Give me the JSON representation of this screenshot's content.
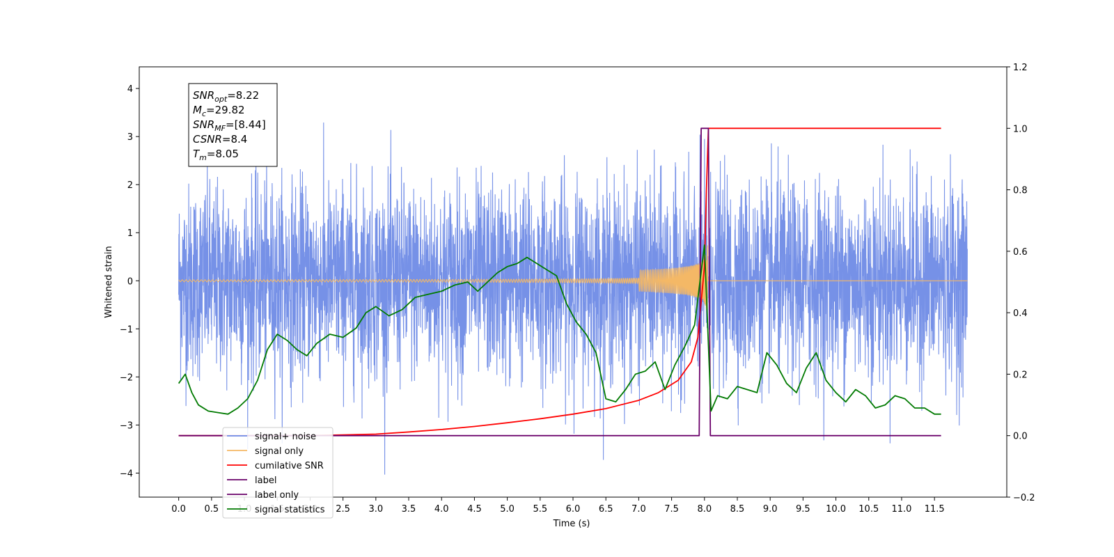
{
  "chart_data": {
    "type": "line",
    "xlabel": "Time (s)",
    "ylabel_left": "Whitened strain",
    "xlim": [
      -0.6,
      12.6
    ],
    "ylim_left": [
      -4.5,
      4.45
    ],
    "ylim_right": [
      -0.2,
      1.2
    ],
    "x_ticks": [
      "0.0",
      "0.5",
      "1.0",
      "1.5",
      "2.0",
      "2.5",
      "3.0",
      "3.5",
      "4.0",
      "4.5",
      "5.0",
      "5.5",
      "6.0",
      "6.5",
      "7.0",
      "7.5",
      "8.0",
      "8.5",
      "9.0",
      "9.5",
      "10.0",
      "10.5",
      "11.0",
      "11.5"
    ],
    "y_ticks_left": [
      "4",
      "3",
      "2",
      "1",
      "0",
      "−1",
      "−2",
      "−3",
      "−4"
    ],
    "y_ticks_right": [
      "1.2",
      "1.0",
      "0.8",
      "0.6",
      "0.4",
      "0.2",
      "0.0",
      "−0.2"
    ],
    "grid": false,
    "legend_position": "lower-left",
    "info_box": {
      "lines": [
        {
          "label": "SNR",
          "sub": "opt",
          "value": "=8.22"
        },
        {
          "label": "M",
          "sub": "c",
          "value": "=29.82"
        },
        {
          "label": "SNR",
          "sub": "MF",
          "value": "=[8.44]"
        },
        {
          "label": "CSNR",
          "sub": "",
          "value": "=8.4"
        },
        {
          "label": "T",
          "sub": "m",
          "value": "=8.05"
        }
      ]
    },
    "merger_time": 8.05,
    "series": [
      {
        "name": "signal+ noise",
        "color": "#6f8be6",
        "axis": "left",
        "x_range": [
          0.0,
          12.0
        ],
        "noise_sigma": 1.0
      },
      {
        "name": "signal only",
        "color": "#f4b866",
        "axis": "left",
        "x_range": [
          0.0,
          12.0
        ],
        "peak_amplitude": 0.9
      },
      {
        "name": "cumilative SNR",
        "color": "#ff0000",
        "axis": "right",
        "x": [
          0.0,
          1.0,
          2.0,
          3.0,
          3.5,
          4.0,
          4.5,
          5.0,
          5.5,
          6.0,
          6.5,
          7.0,
          7.3,
          7.6,
          7.8,
          7.9,
          8.0,
          8.03,
          8.06,
          8.1,
          9.0,
          10.0,
          11.0,
          11.6
        ],
        "values": [
          0.0,
          0.0,
          0.0,
          0.005,
          0.012,
          0.02,
          0.03,
          0.042,
          0.055,
          0.07,
          0.088,
          0.115,
          0.14,
          0.18,
          0.24,
          0.32,
          0.55,
          0.8,
          1.0,
          1.0,
          1.0,
          1.0,
          1.0,
          1.0
        ]
      },
      {
        "name": "label",
        "color": "#6a006a",
        "axis": "right",
        "x": [
          0.0,
          7.92,
          7.95,
          8.06,
          8.09,
          11.6
        ],
        "values": [
          0.0,
          0.0,
          1.0,
          1.0,
          0.0,
          0.0
        ]
      },
      {
        "name": "label only",
        "color": "#6a006a",
        "axis": "right",
        "hidden_under_legend": true,
        "x": [],
        "values": []
      },
      {
        "name": "signal statistics",
        "color": "#007a00",
        "axis": "right",
        "x": [
          0.0,
          0.1,
          0.2,
          0.3,
          0.45,
          0.6,
          0.75,
          0.9,
          1.05,
          1.2,
          1.35,
          1.5,
          1.65,
          1.8,
          1.95,
          2.1,
          2.3,
          2.5,
          2.7,
          2.85,
          3.0,
          3.2,
          3.4,
          3.6,
          3.8,
          4.0,
          4.2,
          4.4,
          4.55,
          4.7,
          4.85,
          5.0,
          5.15,
          5.3,
          5.45,
          5.6,
          5.75,
          5.9,
          6.05,
          6.2,
          6.35,
          6.5,
          6.65,
          6.8,
          6.95,
          7.1,
          7.25,
          7.4,
          7.55,
          7.7,
          7.85,
          8.0,
          8.1,
          8.2,
          8.35,
          8.5,
          8.65,
          8.8,
          8.95,
          9.1,
          9.25,
          9.4,
          9.55,
          9.7,
          9.85,
          10.0,
          10.15,
          10.3,
          10.45,
          10.6,
          10.75,
          10.9,
          11.05,
          11.2,
          11.35,
          11.5,
          11.6
        ],
        "values": [
          0.17,
          0.2,
          0.14,
          0.1,
          0.08,
          0.075,
          0.07,
          0.09,
          0.12,
          0.18,
          0.28,
          0.33,
          0.31,
          0.28,
          0.26,
          0.3,
          0.33,
          0.32,
          0.35,
          0.4,
          0.42,
          0.39,
          0.41,
          0.45,
          0.46,
          0.47,
          0.49,
          0.5,
          0.47,
          0.5,
          0.53,
          0.55,
          0.56,
          0.58,
          0.56,
          0.54,
          0.52,
          0.43,
          0.37,
          0.33,
          0.27,
          0.12,
          0.11,
          0.15,
          0.2,
          0.21,
          0.24,
          0.15,
          0.23,
          0.29,
          0.36,
          0.62,
          0.08,
          0.13,
          0.12,
          0.16,
          0.15,
          0.14,
          0.27,
          0.23,
          0.17,
          0.14,
          0.22,
          0.27,
          0.18,
          0.14,
          0.11,
          0.15,
          0.13,
          0.09,
          0.1,
          0.13,
          0.12,
          0.09,
          0.09,
          0.07,
          0.07
        ]
      }
    ],
    "legend": [
      {
        "name": "signal+ noise",
        "color": "#6f8be6"
      },
      {
        "name": "signal only",
        "color": "#f4b866"
      },
      {
        "name": "cumilative SNR",
        "color": "#ff0000"
      },
      {
        "name": "label",
        "color": "#6a006a"
      },
      {
        "name": "label only",
        "color": "#6a006a"
      },
      {
        "name": "signal statistics",
        "color": "#007a00"
      }
    ]
  }
}
